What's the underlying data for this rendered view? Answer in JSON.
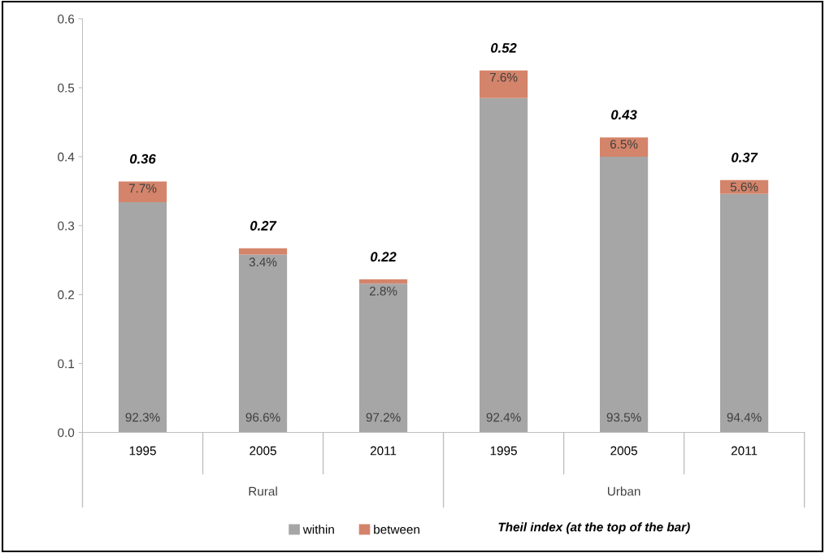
{
  "chart_data": {
    "type": "bar",
    "stacked": true,
    "categories": [
      "1995",
      "2005",
      "2011",
      "1995",
      "2005",
      "2011"
    ],
    "series": [
      {
        "name": "within",
        "color": "#a6a6a6",
        "values": [
          0.334,
          0.258,
          0.216,
          0.485,
          0.4,
          0.346
        ]
      },
      {
        "name": "between",
        "color": "#d4846a",
        "values": [
          0.03,
          0.009,
          0.006,
          0.04,
          0.028,
          0.02
        ]
      }
    ],
    "totals": [
      "0.36",
      "0.27",
      "0.22",
      "0.52",
      "0.43",
      "0.37"
    ],
    "ylim": [
      0,
      0.6
    ],
    "yticks": [
      {
        "value": 0,
        "label": "0.0"
      },
      0.1,
      0.2,
      0.3,
      0.4,
      0.5,
      0.6
    ],
    "annotations": [
      "Rural",
      "Urban",
      "Theil index (at the top of the bar)",
      "92.3%",
      "96.6%",
      "97.2%",
      "92.4%",
      "93.5%",
      "94.4%",
      "7.7%",
      "3.4%",
      "2.8%",
      "7.6%",
      "6.5%",
      "5.6%"
    ],
    "grid": false,
    "legend": "bottom"
  }
}
